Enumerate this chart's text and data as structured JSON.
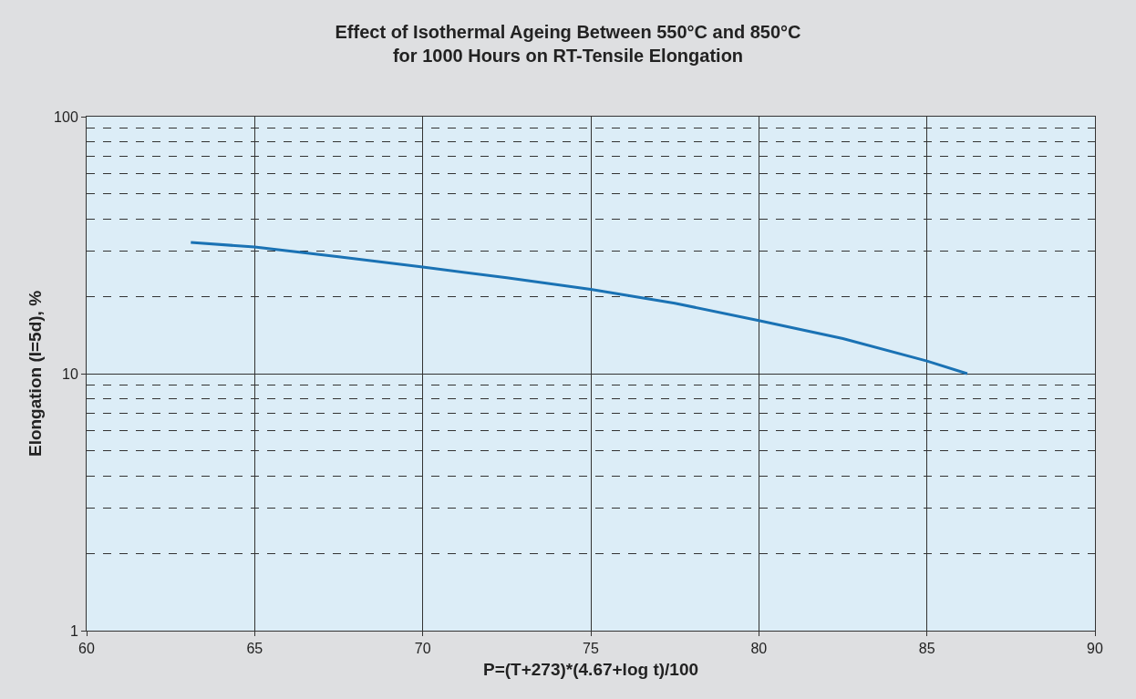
{
  "chart_data": {
    "type": "line",
    "title": "Effect of Isothermal Ageing Between 550°C and 850°C\nfor 1000 Hours on RT-Tensile Elongation",
    "xlabel": "P=(T+273)*(4.67+log t)/100",
    "ylabel": "Elongation (I=5d), %",
    "x": [
      63.1,
      65,
      67.5,
      70,
      72.5,
      75,
      77.5,
      80,
      82.5,
      85,
      86.2
    ],
    "series": [
      {
        "color": "#1a72b4",
        "values": [
          32.4,
          31.1,
          28.5,
          26.0,
          23.6,
          21.3,
          18.8,
          16.1,
          13.7,
          11.2,
          10.0
        ]
      }
    ],
    "log": "y",
    "grid": true,
    "marker": "none",
    "line_style": "solid",
    "xlim": [
      60,
      90
    ],
    "xticks": [
      60,
      65,
      70,
      75,
      80,
      85,
      90
    ],
    "ylim": [
      1,
      100
    ],
    "yticks": [
      1,
      {
        "value": 2,
        "label": null
      },
      {
        "value": 3,
        "label": null
      },
      {
        "value": 4,
        "label": null
      },
      {
        "value": 5,
        "label": null
      },
      {
        "value": 6,
        "label": null
      },
      {
        "value": 7,
        "label": null
      },
      {
        "value": 8,
        "label": null
      },
      {
        "value": 9,
        "label": null
      },
      10,
      {
        "value": 20,
        "label": null
      },
      {
        "value": 30,
        "label": null
      },
      {
        "value": 40,
        "label": null
      },
      {
        "value": 50,
        "label": null
      },
      {
        "value": 60,
        "label": null
      },
      {
        "value": 70,
        "label": null
      },
      {
        "value": 80,
        "label": null
      },
      {
        "value": 90,
        "label": null
      },
      100
    ]
  }
}
